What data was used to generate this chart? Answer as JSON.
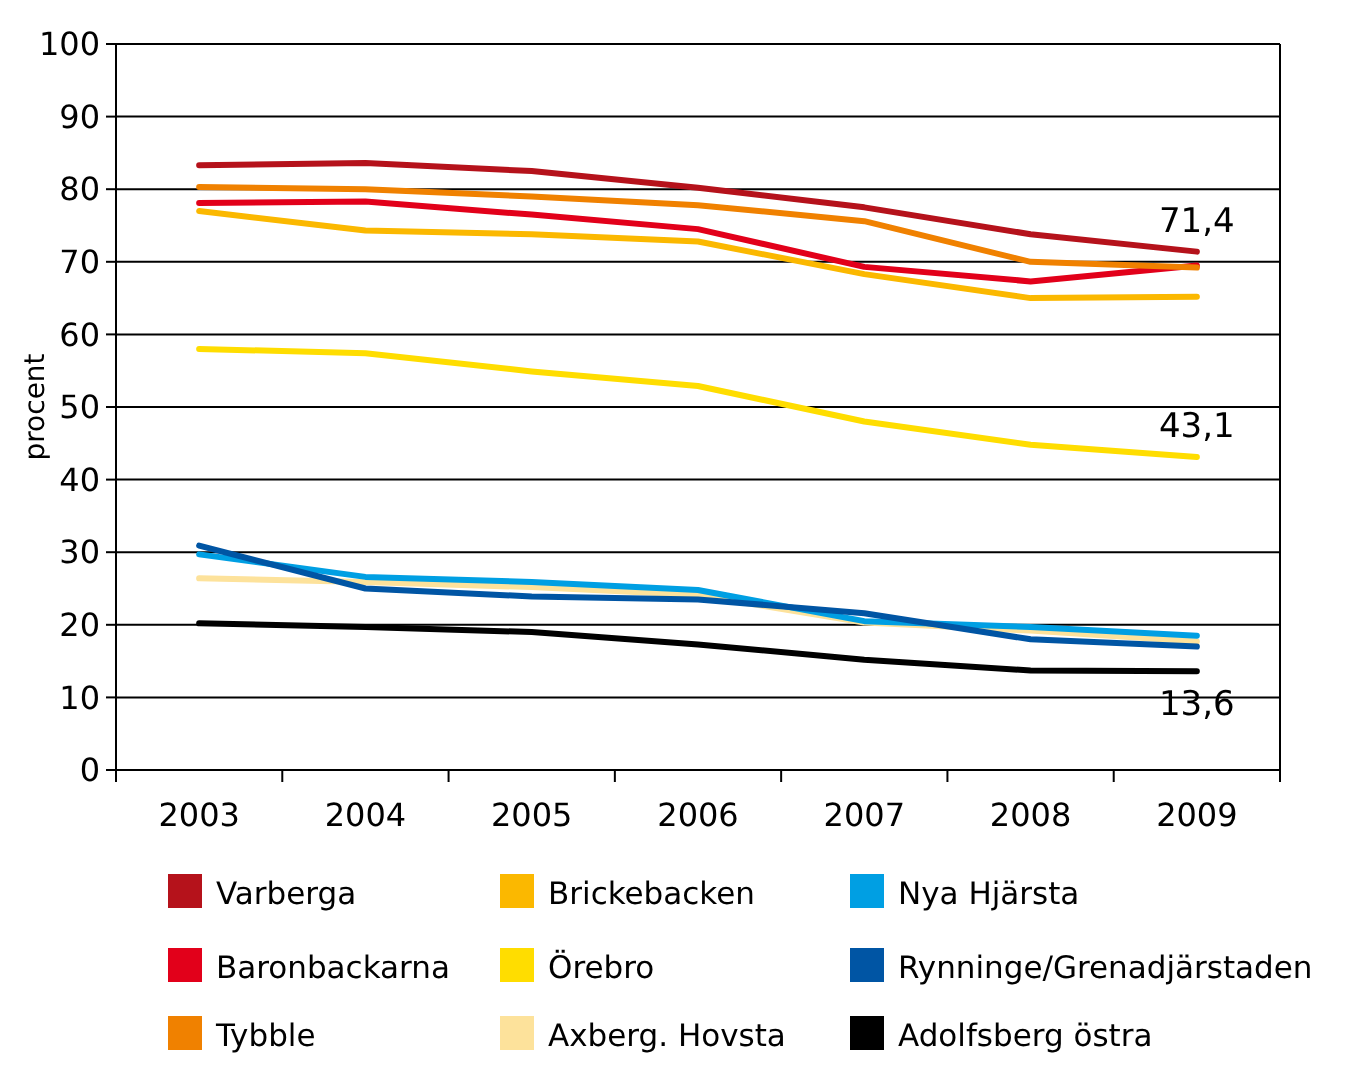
{
  "chart_data": {
    "type": "line",
    "ylabel": "procent",
    "categories": [
      "2003",
      "2004",
      "2005",
      "2006",
      "2007",
      "2008",
      "2009"
    ],
    "ylim": [
      0,
      100
    ],
    "yticks": [
      0,
      10,
      20,
      30,
      40,
      50,
      60,
      70,
      80,
      90,
      100
    ],
    "grid": "y",
    "legend": "bottom",
    "marker": "none",
    "line_style": "solid",
    "series": [
      {
        "name": "Varberga",
        "color": "#b5121b",
        "values": [
          83.3,
          83.6,
          82.5,
          80.2,
          77.5,
          73.8,
          71.4
        ]
      },
      {
        "name": "Baronbackarna",
        "color": "#e2001a",
        "values": [
          78.1,
          78.3,
          76.5,
          74.5,
          69.3,
          67.3,
          69.5
        ]
      },
      {
        "name": "Tybble",
        "color": "#f08100",
        "values": [
          80.3,
          80,
          79,
          77.8,
          75.6,
          70,
          69.2
        ]
      },
      {
        "name": "Brickebacken",
        "color": "#fbb800",
        "values": [
          77,
          74.3,
          73.8,
          72.8,
          68.3,
          65,
          65.2
        ]
      },
      {
        "name": "Örebro",
        "color": "#ffdd00",
        "values": [
          58,
          57.4,
          54.9,
          52.9,
          48,
          44.8,
          43.1
        ]
      },
      {
        "name": "Axberg. Hovsta",
        "color": "#fde29b",
        "values": [
          26.4,
          25.9,
          25.2,
          24.1,
          20.3,
          19.2,
          17.7
        ]
      },
      {
        "name": "Nya Hjärsta",
        "color": "#009fe3",
        "values": [
          29.7,
          26.6,
          25.9,
          24.8,
          20.5,
          19.7,
          18.5
        ]
      },
      {
        "name": "Rynninge/Grenadjärstaden",
        "color": "#0055a4",
        "values": [
          30.9,
          25,
          23.9,
          23.5,
          21.6,
          18,
          17
        ]
      },
      {
        "name": "Adolfsberg östra",
        "color": "#000000",
        "values": [
          20.2,
          19.7,
          19,
          17.3,
          15.2,
          13.7,
          13.6
        ]
      }
    ],
    "annotations": [
      {
        "text": "71,4",
        "x": "2009",
        "y": 71.4
      },
      {
        "text": "43,1",
        "x": "2009",
        "y": 43.1
      },
      {
        "text": "13,6",
        "x": "2009",
        "y": 13.6
      }
    ]
  }
}
